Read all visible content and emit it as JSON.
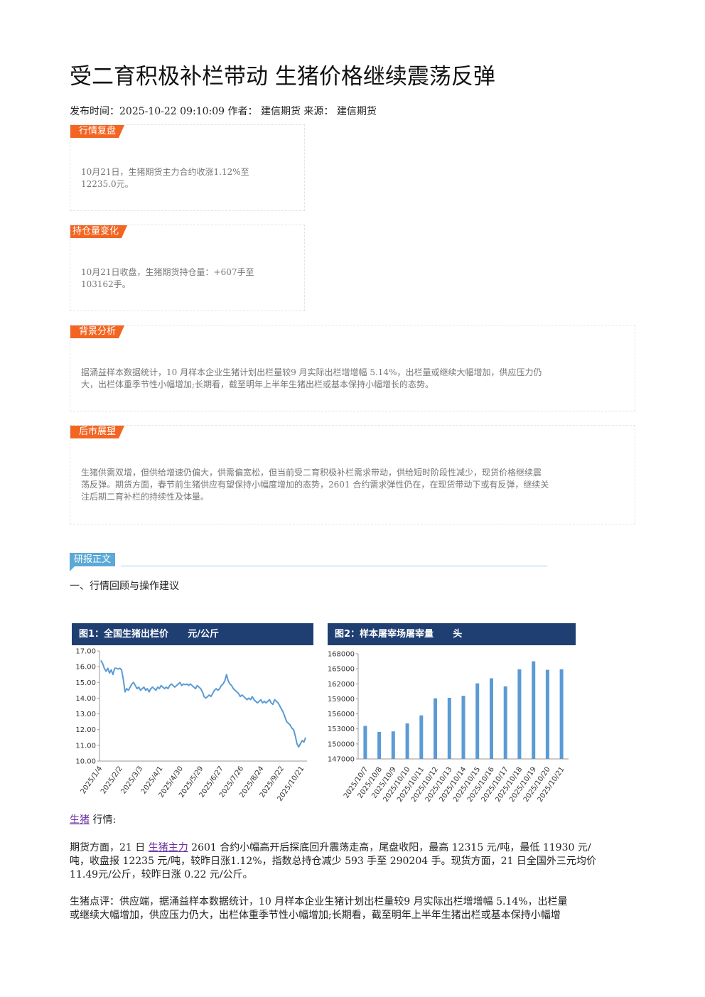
{
  "article": {
    "title": "受二育积极补栏带动 生猪价格继续震荡反弹",
    "meta": "发布时间：2025-10-22 09:10:09 作者：  建信期货 来源：  建信期货"
  },
  "boxes": {
    "review": {
      "tag": "行情复盘",
      "line1": "10月21日，生猪期货主力合约收涨1.12%至",
      "line2": "12235.0元。"
    },
    "position": {
      "tag": "持仓量变化",
      "line1": "10月21日收盘，生猪期货持仓量：+607手至",
      "line2": "103162手。"
    },
    "background": {
      "tag": "背景分析",
      "line1": "据涌益样本数据统计，10 月样本企业生猪计划出栏量较9 月实际出栏增增幅 5.14%，出栏量或继续大幅增加，供应压力仍",
      "line2": "大，出栏体重季节性小幅增加;长期看，截至明年上半年生猪出栏或基本保持小幅增长的态势。"
    },
    "outlook": {
      "tag": "后市展望",
      "line1": "生猪供需双增，但供给增速仍偏大，供需偏宽松，但当前受二育积极补栏需求带动，供给短时阶段性减少，现货价格继续震",
      "line2": "荡反弹。期货方面，春节前生猪供应有望保持小幅度增加的态势，2601 合约需求弹性仍在，在现货带动下或有反弹，继续关",
      "line3": "注后期二育补栏的持续性及体量。"
    }
  },
  "report": {
    "heading": "研报正文",
    "section1": "一、行情回顾与操作建议"
  },
  "chart_data": [
    {
      "type": "line",
      "title": "图1：全国生猪出栏价      元/公斤",
      "ylim": [
        10.0,
        17.0
      ],
      "yticks": [
        "17.00",
        "16.00",
        "15.00",
        "14.00",
        "13.00",
        "12.00",
        "11.00",
        "10.00"
      ],
      "xticks": [
        "2025/1/4",
        "2025/2/2",
        "2025/3/3",
        "2025/4/1",
        "2025/4/30",
        "2025/5/29",
        "2025/6/27",
        "2025/7/26",
        "2025/8/24",
        "2025/9/22",
        "2025/10/21"
      ],
      "values": [
        16.4,
        16.2,
        15.9,
        15.7,
        15.9,
        15.6,
        15.8,
        15.5,
        15.9,
        15.9,
        15.85,
        15.9,
        15.8,
        15.2,
        14.4,
        14.6,
        14.5,
        14.7,
        14.9,
        15.0,
        14.8,
        14.6,
        14.7,
        14.5,
        14.6,
        14.7,
        14.5,
        14.6,
        14.4,
        14.6,
        14.7,
        14.6,
        14.5,
        14.7,
        14.6,
        14.8,
        14.7,
        14.6,
        14.7,
        14.6,
        14.8,
        14.9,
        14.8,
        14.7,
        14.8,
        14.9,
        15.0,
        14.8,
        14.9,
        14.85,
        14.9,
        14.8,
        14.9,
        14.8,
        14.7,
        14.6,
        14.8,
        14.7,
        14.6,
        14.4,
        14.1,
        14.0,
        14.1,
        14.2,
        14.1,
        14.3,
        14.5,
        14.6,
        14.5,
        14.6,
        14.8,
        14.9,
        15.1,
        15.5,
        15.1,
        14.9,
        14.8,
        14.6,
        14.5,
        14.4,
        14.3,
        14.1,
        14.2,
        14.1,
        14.0,
        13.9,
        14.0,
        13.9,
        14.1,
        13.9,
        13.8,
        13.7,
        13.8,
        13.9,
        13.7,
        13.8,
        13.7,
        13.8,
        13.9,
        13.7,
        13.6,
        13.9,
        13.8,
        13.7,
        13.5,
        13.3,
        13.1,
        12.8,
        12.5,
        12.4,
        12.3,
        12.1,
        12.0,
        11.6,
        11.1,
        10.9,
        11.1,
        11.3,
        11.2,
        11.5
      ]
    },
    {
      "type": "bar",
      "title": "图2：样本屠宰场屠宰量      头",
      "ylim": [
        147000,
        168000
      ],
      "yticks": [
        "168000",
        "165000",
        "162000",
        "159000",
        "156000",
        "153000",
        "150000",
        "147000"
      ],
      "categories": [
        "2025/10/7",
        "2025/10/8",
        "2025/10/9",
        "2025/10/10",
        "2025/10/11",
        "2025/10/12",
        "2025/10/13",
        "2025/10/14",
        "2025/10/15",
        "2025/10/16",
        "2025/10/17",
        "2025/10/18",
        "2025/10/19",
        "2025/10/20",
        "2025/10/21"
      ],
      "values": [
        153600,
        152400,
        152500,
        154100,
        155700,
        159100,
        159200,
        159600,
        162100,
        163100,
        161500,
        164900,
        166500,
        164800,
        164900
      ]
    }
  ],
  "body": {
    "subhead_link": "生猪",
    "subhead_rest": " 行情:",
    "p1_a": "期货方面，21 日 ",
    "p1_link": "生猪主力",
    "p1_b": " 2601 合约小幅高开后探底回升震荡走高，尾盘收阳，最高 12315 元/吨，最低 11930 元/",
    "p1_line2": "吨，收盘报 12235 元/吨，较昨日涨1.12%，指数总持仓减少 593 手至 290204 手。现货方面，21 日全国外三元均价",
    "p1_line3": "11.49元/公斤，较昨日涨 0.22 元/公斤。",
    "p2_line1": "生猪点评：供应端，据涌益样本数据统计，10 月样本企业生猪计划出栏量较9 月实际出栏增增幅 5.14%，出栏量",
    "p2_line2": "或继续大幅增加，供应压力仍大，出栏体重季节性小幅增加;长期看，截至明年上半年生猪出栏或基本保持小幅增"
  },
  "colors": {
    "tag_orange": "#f26522",
    "chart_header_navy": "#1f3f73",
    "series_blue": "#5b9bd5",
    "heading_blue": "#5aa9d6",
    "link_purple": "#6a2ea0"
  }
}
